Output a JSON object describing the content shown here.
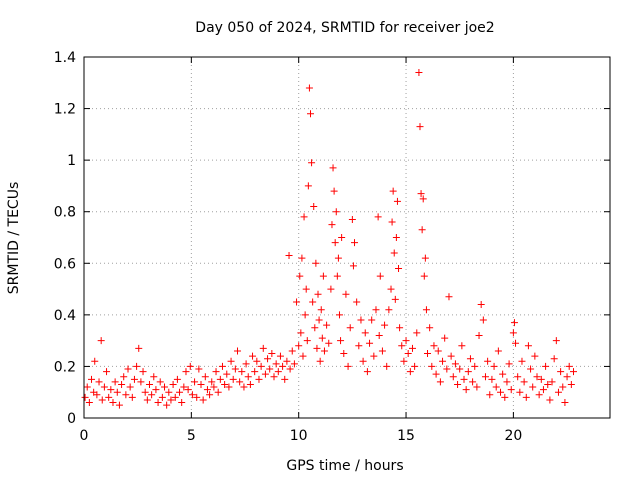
{
  "chart_data": {
    "type": "scatter",
    "title": "Day 050 of 2024, SRMTID for receiver joe2",
    "xlabel": "GPS time / hours",
    "ylabel": "SRMTID / TECUs",
    "xlim": [
      0,
      24.5
    ],
    "ylim": [
      0,
      1.4
    ],
    "xticks": [
      0,
      5,
      10,
      15,
      20
    ],
    "xtick_labels": [
      "0",
      "5",
      "10",
      "15",
      "20"
    ],
    "yticks": [
      0,
      0.2,
      0.4,
      0.6,
      0.8,
      1.0,
      1.2,
      1.4
    ],
    "ytick_labels": [
      "0",
      "0.2",
      "0.4",
      "0.6",
      "0.8",
      "1",
      "1.2",
      "1.4"
    ],
    "grid": true,
    "marker": "+",
    "series_color": "#ff0000",
    "series": [
      {
        "name": "SRMTID",
        "points": [
          [
            0.05,
            0.08
          ],
          [
            0.15,
            0.12
          ],
          [
            0.25,
            0.06
          ],
          [
            0.35,
            0.15
          ],
          [
            0.45,
            0.1
          ],
          [
            0.5,
            0.22
          ],
          [
            0.6,
            0.09
          ],
          [
            0.7,
            0.14
          ],
          [
            0.8,
            0.3
          ],
          [
            0.85,
            0.07
          ],
          [
            0.95,
            0.12
          ],
          [
            1.05,
            0.18
          ],
          [
            1.15,
            0.08
          ],
          [
            1.25,
            0.11
          ],
          [
            1.35,
            0.06
          ],
          [
            1.45,
            0.14
          ],
          [
            1.55,
            0.1
          ],
          [
            1.65,
            0.05
          ],
          [
            1.75,
            0.13
          ],
          [
            1.85,
            0.16
          ],
          [
            1.95,
            0.09
          ],
          [
            2.05,
            0.19
          ],
          [
            2.15,
            0.12
          ],
          [
            2.25,
            0.08
          ],
          [
            2.35,
            0.15
          ],
          [
            2.45,
            0.2
          ],
          [
            2.55,
            0.27
          ],
          [
            2.65,
            0.14
          ],
          [
            2.75,
            0.18
          ],
          [
            2.85,
            0.1
          ],
          [
            2.95,
            0.07
          ],
          [
            3.05,
            0.13
          ],
          [
            3.15,
            0.09
          ],
          [
            3.25,
            0.16
          ],
          [
            3.35,
            0.11
          ],
          [
            3.45,
            0.06
          ],
          [
            3.55,
            0.14
          ],
          [
            3.65,
            0.08
          ],
          [
            3.75,
            0.12
          ],
          [
            3.85,
            0.05
          ],
          [
            3.95,
            0.1
          ],
          [
            4.05,
            0.07
          ],
          [
            4.15,
            0.13
          ],
          [
            4.25,
            0.08
          ],
          [
            4.35,
            0.15
          ],
          [
            4.45,
            0.1
          ],
          [
            4.55,
            0.06
          ],
          [
            4.65,
            0.12
          ],
          [
            4.75,
            0.18
          ],
          [
            4.85,
            0.11
          ],
          [
            4.95,
            0.2
          ],
          [
            5.05,
            0.09
          ],
          [
            5.15,
            0.14
          ],
          [
            5.25,
            0.08
          ],
          [
            5.35,
            0.19
          ],
          [
            5.45,
            0.13
          ],
          [
            5.55,
            0.07
          ],
          [
            5.65,
            0.16
          ],
          [
            5.75,
            0.11
          ],
          [
            5.85,
            0.09
          ],
          [
            5.95,
            0.14
          ],
          [
            6.05,
            0.12
          ],
          [
            6.15,
            0.18
          ],
          [
            6.25,
            0.1
          ],
          [
            6.35,
            0.15
          ],
          [
            6.45,
            0.2
          ],
          [
            6.55,
            0.13
          ],
          [
            6.65,
            0.17
          ],
          [
            6.75,
            0.12
          ],
          [
            6.85,
            0.22
          ],
          [
            6.95,
            0.15
          ],
          [
            7.05,
            0.19
          ],
          [
            7.15,
            0.26
          ],
          [
            7.25,
            0.14
          ],
          [
            7.35,
            0.18
          ],
          [
            7.45,
            0.12
          ],
          [
            7.55,
            0.21
          ],
          [
            7.65,
            0.16
          ],
          [
            7.75,
            0.13
          ],
          [
            7.85,
            0.24
          ],
          [
            7.95,
            0.18
          ],
          [
            8.05,
            0.22
          ],
          [
            8.15,
            0.15
          ],
          [
            8.25,
            0.2
          ],
          [
            8.35,
            0.27
          ],
          [
            8.45,
            0.17
          ],
          [
            8.55,
            0.23
          ],
          [
            8.65,
            0.19
          ],
          [
            8.75,
            0.25
          ],
          [
            8.85,
            0.16
          ],
          [
            8.95,
            0.21
          ],
          [
            9.05,
            0.18
          ],
          [
            9.15,
            0.24
          ],
          [
            9.25,
            0.2
          ],
          [
            9.35,
            0.15
          ],
          [
            9.45,
            0.22
          ],
          [
            9.55,
            0.63
          ],
          [
            9.6,
            0.19
          ],
          [
            9.7,
            0.26
          ],
          [
            9.8,
            0.21
          ],
          [
            9.9,
            0.45
          ],
          [
            10.0,
            0.28
          ],
          [
            10.05,
            0.55
          ],
          [
            10.1,
            0.33
          ],
          [
            10.15,
            0.62
          ],
          [
            10.2,
            0.24
          ],
          [
            10.25,
            0.78
          ],
          [
            10.3,
            0.4
          ],
          [
            10.35,
            0.5
          ],
          [
            10.4,
            0.3
          ],
          [
            10.45,
            0.9
          ],
          [
            10.5,
            1.28
          ],
          [
            10.55,
            1.18
          ],
          [
            10.6,
            0.99
          ],
          [
            10.65,
            0.45
          ],
          [
            10.7,
            0.82
          ],
          [
            10.75,
            0.35
          ],
          [
            10.8,
            0.6
          ],
          [
            10.85,
            0.27
          ],
          [
            10.9,
            0.48
          ],
          [
            10.95,
            0.38
          ],
          [
            11.0,
            0.22
          ],
          [
            11.05,
            0.42
          ],
          [
            11.1,
            0.31
          ],
          [
            11.15,
            0.55
          ],
          [
            11.2,
            0.26
          ],
          [
            11.3,
            0.36
          ],
          [
            11.4,
            0.29
          ],
          [
            11.5,
            0.5
          ],
          [
            11.55,
            0.75
          ],
          [
            11.6,
            0.97
          ],
          [
            11.65,
            0.88
          ],
          [
            11.7,
            0.68
          ],
          [
            11.75,
            0.8
          ],
          [
            11.8,
            0.55
          ],
          [
            11.85,
            0.62
          ],
          [
            11.9,
            0.4
          ],
          [
            11.95,
            0.3
          ],
          [
            12.0,
            0.7
          ],
          [
            12.1,
            0.25
          ],
          [
            12.2,
            0.48
          ],
          [
            12.3,
            0.2
          ],
          [
            12.4,
            0.35
          ],
          [
            12.5,
            0.77
          ],
          [
            12.55,
            0.59
          ],
          [
            12.6,
            0.68
          ],
          [
            12.7,
            0.45
          ],
          [
            12.8,
            0.28
          ],
          [
            12.9,
            0.38
          ],
          [
            13.0,
            0.22
          ],
          [
            13.1,
            0.33
          ],
          [
            13.2,
            0.18
          ],
          [
            13.3,
            0.29
          ],
          [
            13.4,
            0.38
          ],
          [
            13.5,
            0.24
          ],
          [
            13.6,
            0.42
          ],
          [
            13.7,
            0.78
          ],
          [
            13.75,
            0.32
          ],
          [
            13.8,
            0.55
          ],
          [
            13.9,
            0.26
          ],
          [
            14.0,
            0.36
          ],
          [
            14.1,
            0.2
          ],
          [
            14.2,
            0.42
          ],
          [
            14.3,
            0.5
          ],
          [
            14.35,
            0.76
          ],
          [
            14.4,
            0.88
          ],
          [
            14.45,
            0.64
          ],
          [
            14.5,
            0.46
          ],
          [
            14.55,
            0.7
          ],
          [
            14.6,
            0.84
          ],
          [
            14.65,
            0.58
          ],
          [
            14.7,
            0.35
          ],
          [
            14.8,
            0.28
          ],
          [
            14.9,
            0.22
          ],
          [
            15.0,
            0.3
          ],
          [
            15.1,
            0.25
          ],
          [
            15.2,
            0.18
          ],
          [
            15.3,
            0.27
          ],
          [
            15.4,
            0.2
          ],
          [
            15.5,
            0.33
          ],
          [
            15.6,
            1.34
          ],
          [
            15.65,
            1.13
          ],
          [
            15.7,
            0.87
          ],
          [
            15.75,
            0.73
          ],
          [
            15.8,
            0.85
          ],
          [
            15.85,
            0.55
          ],
          [
            15.9,
            0.62
          ],
          [
            15.95,
            0.42
          ],
          [
            16.0,
            0.25
          ],
          [
            16.1,
            0.35
          ],
          [
            16.2,
            0.2
          ],
          [
            16.3,
            0.28
          ],
          [
            16.4,
            0.17
          ],
          [
            16.5,
            0.26
          ],
          [
            16.6,
            0.14
          ],
          [
            16.7,
            0.22
          ],
          [
            16.8,
            0.31
          ],
          [
            16.9,
            0.19
          ],
          [
            17.0,
            0.47
          ],
          [
            17.1,
            0.24
          ],
          [
            17.2,
            0.16
          ],
          [
            17.3,
            0.21
          ],
          [
            17.4,
            0.13
          ],
          [
            17.5,
            0.19
          ],
          [
            17.6,
            0.28
          ],
          [
            17.7,
            0.15
          ],
          [
            17.8,
            0.11
          ],
          [
            17.9,
            0.18
          ],
          [
            18.0,
            0.23
          ],
          [
            18.1,
            0.14
          ],
          [
            18.2,
            0.2
          ],
          [
            18.3,
            0.12
          ],
          [
            18.4,
            0.32
          ],
          [
            18.5,
            0.44
          ],
          [
            18.6,
            0.38
          ],
          [
            18.7,
            0.16
          ],
          [
            18.8,
            0.22
          ],
          [
            18.9,
            0.09
          ],
          [
            19.0,
            0.15
          ],
          [
            19.1,
            0.2
          ],
          [
            19.2,
            0.12
          ],
          [
            19.3,
            0.26
          ],
          [
            19.4,
            0.1
          ],
          [
            19.5,
            0.17
          ],
          [
            19.6,
            0.08
          ],
          [
            19.7,
            0.14
          ],
          [
            19.8,
            0.21
          ],
          [
            19.9,
            0.11
          ],
          [
            20.0,
            0.33
          ],
          [
            20.05,
            0.37
          ],
          [
            20.1,
            0.29
          ],
          [
            20.2,
            0.16
          ],
          [
            20.3,
            0.1
          ],
          [
            20.4,
            0.22
          ],
          [
            20.5,
            0.14
          ],
          [
            20.6,
            0.08
          ],
          [
            20.7,
            0.28
          ],
          [
            20.8,
            0.19
          ],
          [
            20.9,
            0.12
          ],
          [
            21.0,
            0.24
          ],
          [
            21.1,
            0.16
          ],
          [
            21.2,
            0.09
          ],
          [
            21.3,
            0.15
          ],
          [
            21.4,
            0.11
          ],
          [
            21.5,
            0.2
          ],
          [
            21.6,
            0.13
          ],
          [
            21.7,
            0.07
          ],
          [
            21.8,
            0.14
          ],
          [
            21.9,
            0.23
          ],
          [
            22.0,
            0.3
          ],
          [
            22.1,
            0.1
          ],
          [
            22.2,
            0.18
          ],
          [
            22.3,
            0.12
          ],
          [
            22.4,
            0.06
          ],
          [
            22.5,
            0.16
          ],
          [
            22.6,
            0.2
          ],
          [
            22.7,
            0.13
          ],
          [
            22.8,
            0.18
          ]
        ]
      }
    ]
  }
}
